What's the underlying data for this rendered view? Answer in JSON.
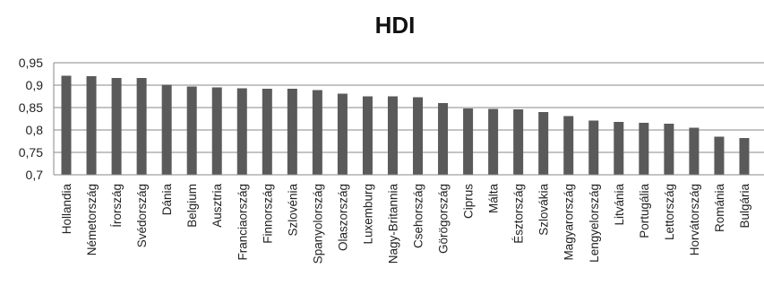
{
  "chart_data": {
    "type": "bar",
    "title": "HDI",
    "xlabel": "",
    "ylabel": "",
    "ylim": [
      0.7,
      0.95
    ],
    "yticks": [
      "0,7",
      "0,75",
      "0,8",
      "0,85",
      "0,9",
      "0,95"
    ],
    "ytick_values": [
      0.7,
      0.75,
      0.8,
      0.85,
      0.9,
      0.95
    ],
    "grid": true,
    "legend": "none",
    "bar_color": "#5a5a5a",
    "categories": [
      "Hollandia",
      "Németország",
      "Írország",
      "Svédország",
      "Dánia",
      "Belgium",
      "Ausztria",
      "Franciaország",
      "Finnország",
      "Szlovénia",
      "Spanyolország",
      "Olaszország",
      "Luxemburg",
      "Nagy-Britannia",
      "Csehország",
      "Görögország",
      "Ciprus",
      "Málta",
      "Észtország",
      "Szlovákia",
      "Magyarország",
      "Lengyelország",
      "Litvánia",
      "Portugália",
      "Lettország",
      "Horvátország",
      "Románia",
      "Bulgária"
    ],
    "values": [
      0.921,
      0.92,
      0.916,
      0.916,
      0.901,
      0.897,
      0.895,
      0.893,
      0.892,
      0.892,
      0.889,
      0.881,
      0.875,
      0.875,
      0.873,
      0.86,
      0.848,
      0.847,
      0.846,
      0.84,
      0.831,
      0.821,
      0.818,
      0.816,
      0.814,
      0.805,
      0.785,
      0.782
    ]
  }
}
